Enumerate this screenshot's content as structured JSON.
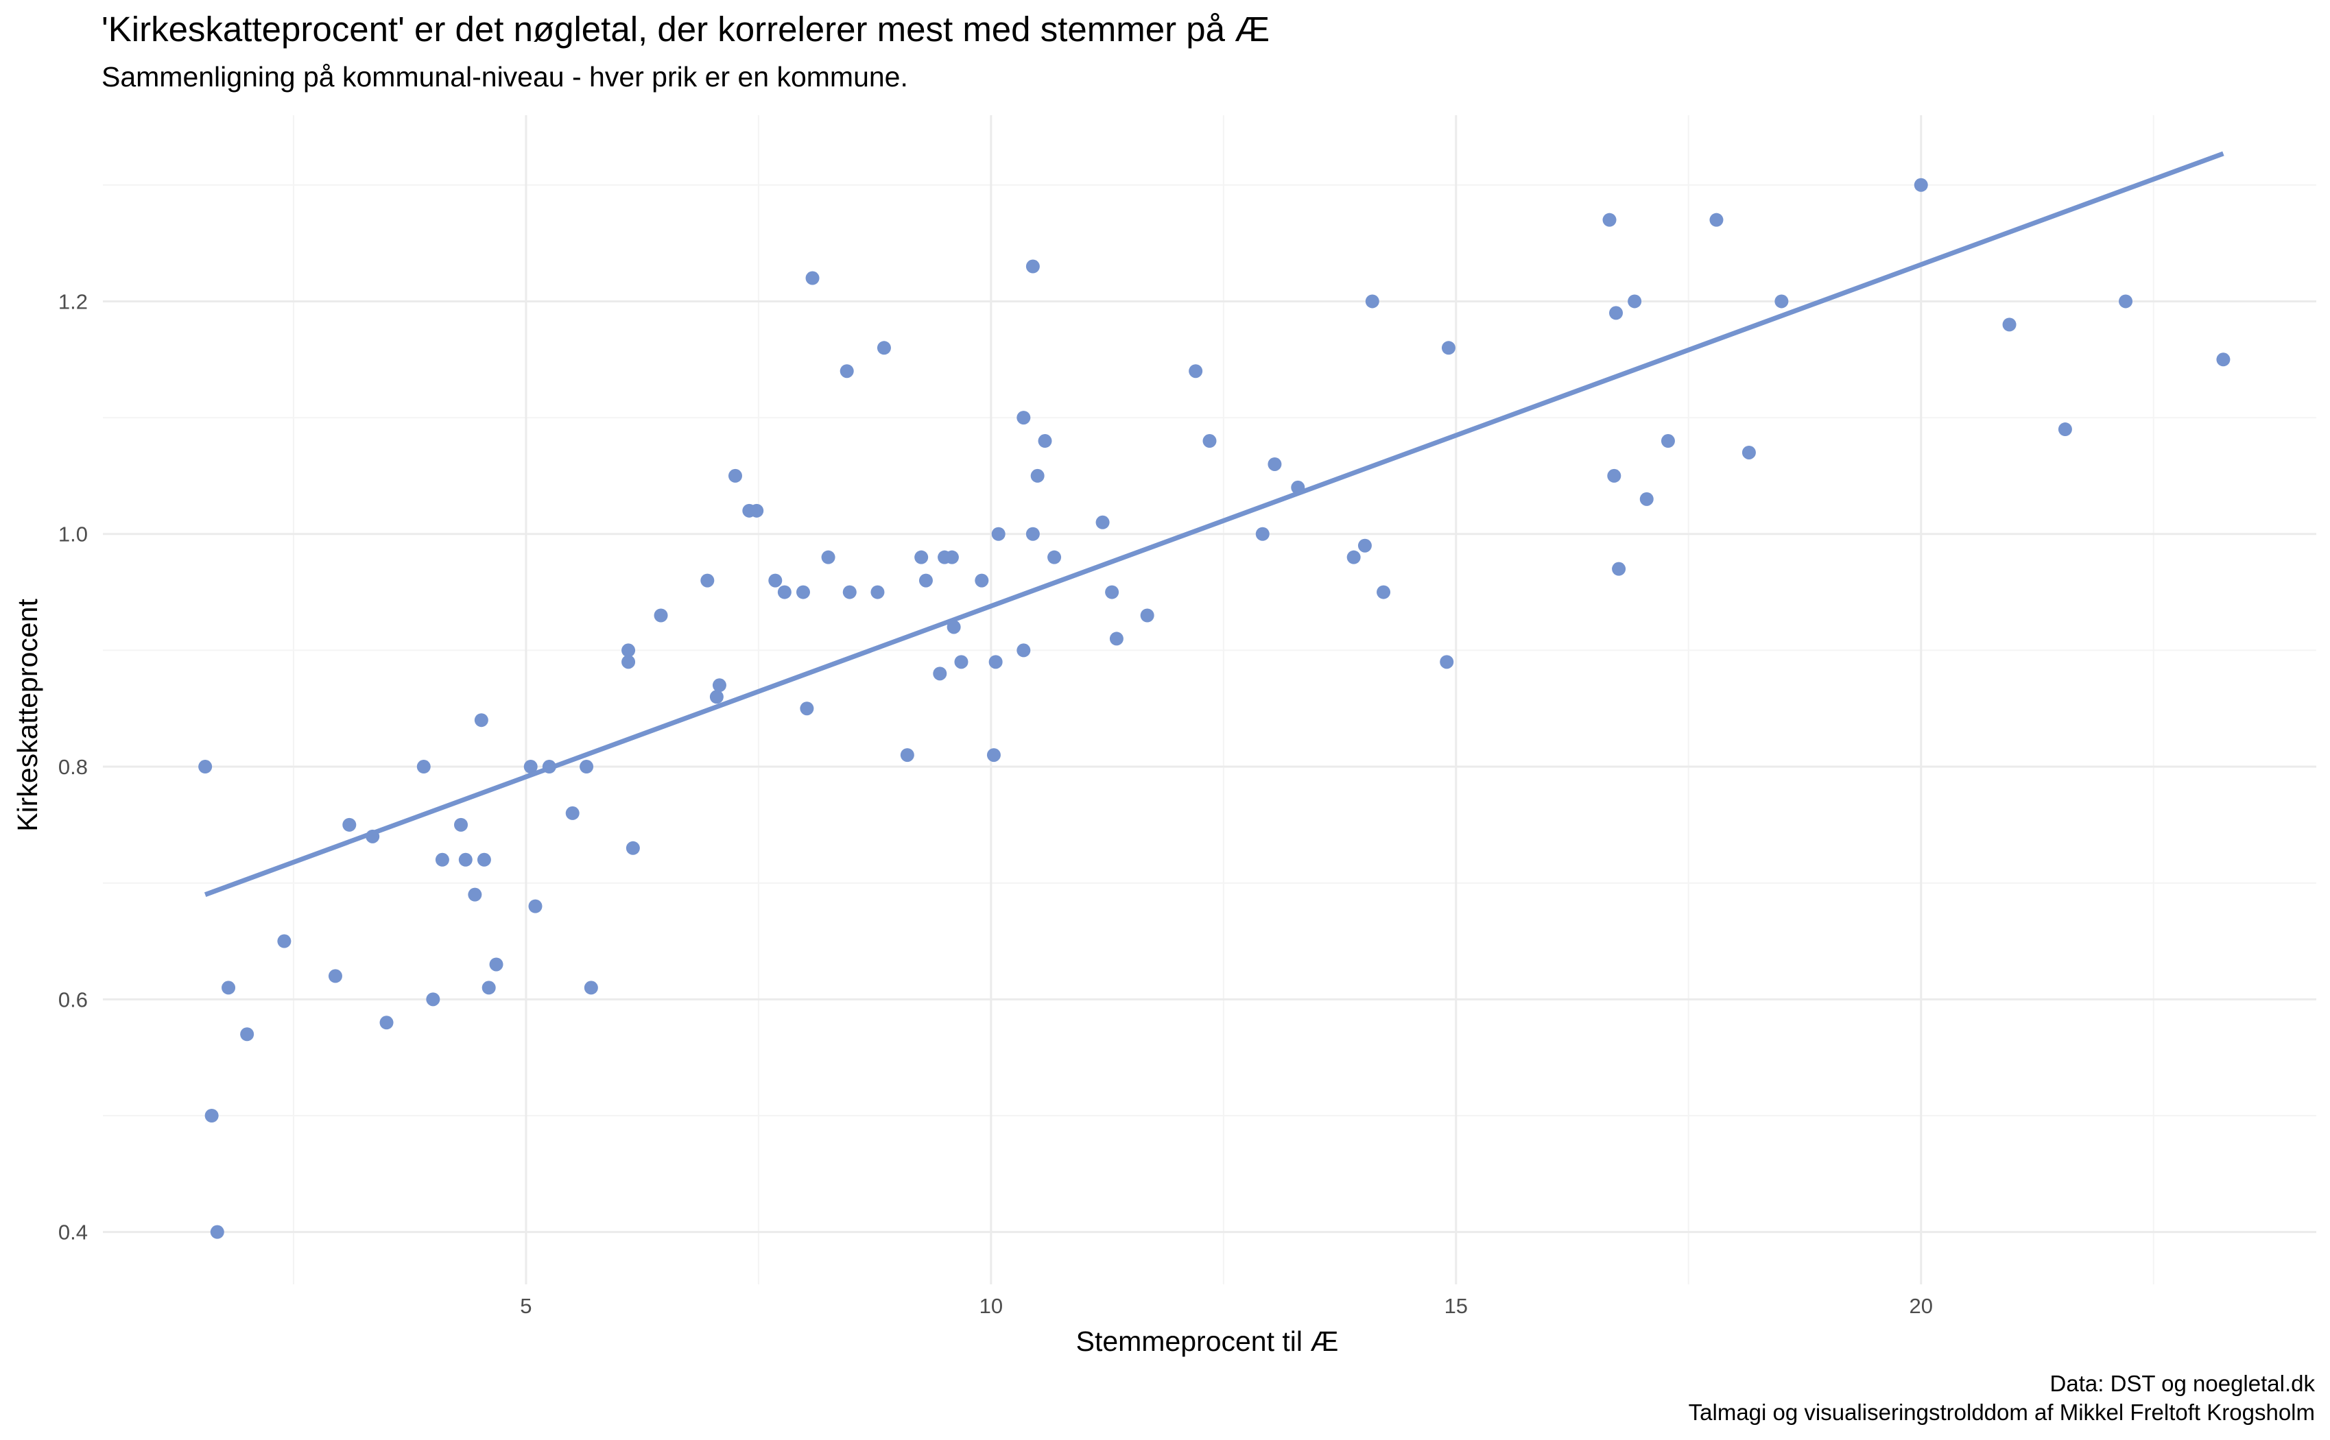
{
  "title": "'Kirkeskatteprocent' er det nøgletal, der korrelerer mest med stemmer på Æ",
  "subtitle": "Sammenligning på kommunal-niveau - hver prik er en kommune.",
  "caption": {
    "line1": "Data: DST og noegletal.dk",
    "line2": "Talmagi og visualiseringstrolddom af Mikkel Freltoft Krogsholm"
  },
  "colors": {
    "point": "#7493CF",
    "line": "#7493CF",
    "grid_major": "#EBEBEB",
    "grid_minor": "#F4F4F4",
    "tick_text": "#4D4D4D"
  },
  "chart_data": {
    "type": "scatter",
    "xlabel": "Stemmeprocent til Æ",
    "ylabel": "Kirkeskatteprocent",
    "xlim": [
      0.45,
      24.25
    ],
    "ylim": [
      0.355,
      1.36
    ],
    "x_ticks": [
      5,
      10,
      15,
      20
    ],
    "x_tick_labels": [
      "5",
      "10",
      "15",
      "20"
    ],
    "x_minor_ticks": [
      2.5,
      7.5,
      12.5,
      17.5,
      22.5
    ],
    "y_ticks": [
      0.4,
      0.6,
      0.8,
      1.0,
      1.2
    ],
    "y_tick_labels": [
      "0.4",
      "0.6",
      "0.8",
      "1.0",
      "1.2"
    ],
    "y_minor_ticks": [
      0.5,
      0.7,
      0.9,
      1.1,
      1.3
    ],
    "grid": true,
    "trend_line": {
      "x": [
        1.55,
        23.25
      ],
      "y": [
        0.69,
        1.327
      ]
    },
    "points": [
      [
        1.55,
        0.8
      ],
      [
        1.62,
        0.5
      ],
      [
        1.68,
        0.4
      ],
      [
        1.8,
        0.61
      ],
      [
        2.0,
        0.57
      ],
      [
        2.4,
        0.65
      ],
      [
        2.95,
        0.62
      ],
      [
        3.1,
        0.75
      ],
      [
        3.35,
        0.74
      ],
      [
        3.5,
        0.58
      ],
      [
        3.9,
        0.8
      ],
      [
        4.0,
        0.6
      ],
      [
        4.1,
        0.72
      ],
      [
        4.3,
        0.75
      ],
      [
        4.35,
        0.72
      ],
      [
        4.45,
        0.69
      ],
      [
        4.52,
        0.84
      ],
      [
        4.55,
        0.72
      ],
      [
        4.6,
        0.61
      ],
      [
        4.68,
        0.63
      ],
      [
        5.05,
        0.8
      ],
      [
        5.1,
        0.68
      ],
      [
        5.25,
        0.8
      ],
      [
        5.5,
        0.76
      ],
      [
        5.65,
        0.8
      ],
      [
        5.7,
        0.61
      ],
      [
        6.1,
        0.9
      ],
      [
        6.1,
        0.89
      ],
      [
        6.15,
        0.73
      ],
      [
        6.45,
        0.93
      ],
      [
        6.95,
        0.96
      ],
      [
        7.05,
        0.86
      ],
      [
        7.08,
        0.87
      ],
      [
        7.25,
        1.05
      ],
      [
        7.4,
        1.02
      ],
      [
        7.48,
        1.02
      ],
      [
        7.68,
        0.96
      ],
      [
        7.78,
        0.95
      ],
      [
        7.98,
        0.95
      ],
      [
        8.02,
        0.85
      ],
      [
        8.08,
        1.22
      ],
      [
        8.25,
        0.98
      ],
      [
        8.45,
        1.14
      ],
      [
        8.48,
        0.95
      ],
      [
        8.78,
        0.95
      ],
      [
        8.85,
        1.16
      ],
      [
        9.1,
        0.81
      ],
      [
        9.25,
        0.98
      ],
      [
        9.3,
        0.96
      ],
      [
        9.45,
        0.88
      ],
      [
        9.5,
        0.98
      ],
      [
        9.58,
        0.98
      ],
      [
        9.6,
        0.92
      ],
      [
        9.68,
        0.89
      ],
      [
        9.9,
        0.96
      ],
      [
        10.03,
        0.81
      ],
      [
        10.05,
        0.89
      ],
      [
        10.08,
        1.0
      ],
      [
        10.35,
        0.9
      ],
      [
        10.35,
        1.1
      ],
      [
        10.45,
        1.0
      ],
      [
        10.45,
        1.23
      ],
      [
        10.5,
        1.05
      ],
      [
        10.58,
        1.08
      ],
      [
        10.68,
        0.98
      ],
      [
        11.2,
        1.01
      ],
      [
        11.3,
        0.95
      ],
      [
        11.35,
        0.91
      ],
      [
        11.68,
        0.93
      ],
      [
        12.2,
        1.14
      ],
      [
        12.35,
        1.08
      ],
      [
        12.92,
        1.0
      ],
      [
        13.05,
        1.06
      ],
      [
        13.3,
        1.04
      ],
      [
        13.9,
        0.98
      ],
      [
        14.02,
        0.99
      ],
      [
        14.1,
        1.2
      ],
      [
        14.22,
        0.95
      ],
      [
        14.9,
        0.89
      ],
      [
        14.92,
        1.16
      ],
      [
        16.65,
        1.27
      ],
      [
        16.7,
        1.05
      ],
      [
        16.72,
        1.19
      ],
      [
        16.75,
        0.97
      ],
      [
        16.92,
        1.2
      ],
      [
        17.05,
        1.03
      ],
      [
        17.28,
        1.08
      ],
      [
        17.8,
        1.27
      ],
      [
        18.15,
        1.07
      ],
      [
        18.5,
        1.2
      ],
      [
        20.0,
        1.3
      ],
      [
        20.95,
        1.18
      ],
      [
        21.55,
        1.09
      ],
      [
        22.2,
        1.2
      ],
      [
        23.25,
        1.15
      ]
    ]
  }
}
